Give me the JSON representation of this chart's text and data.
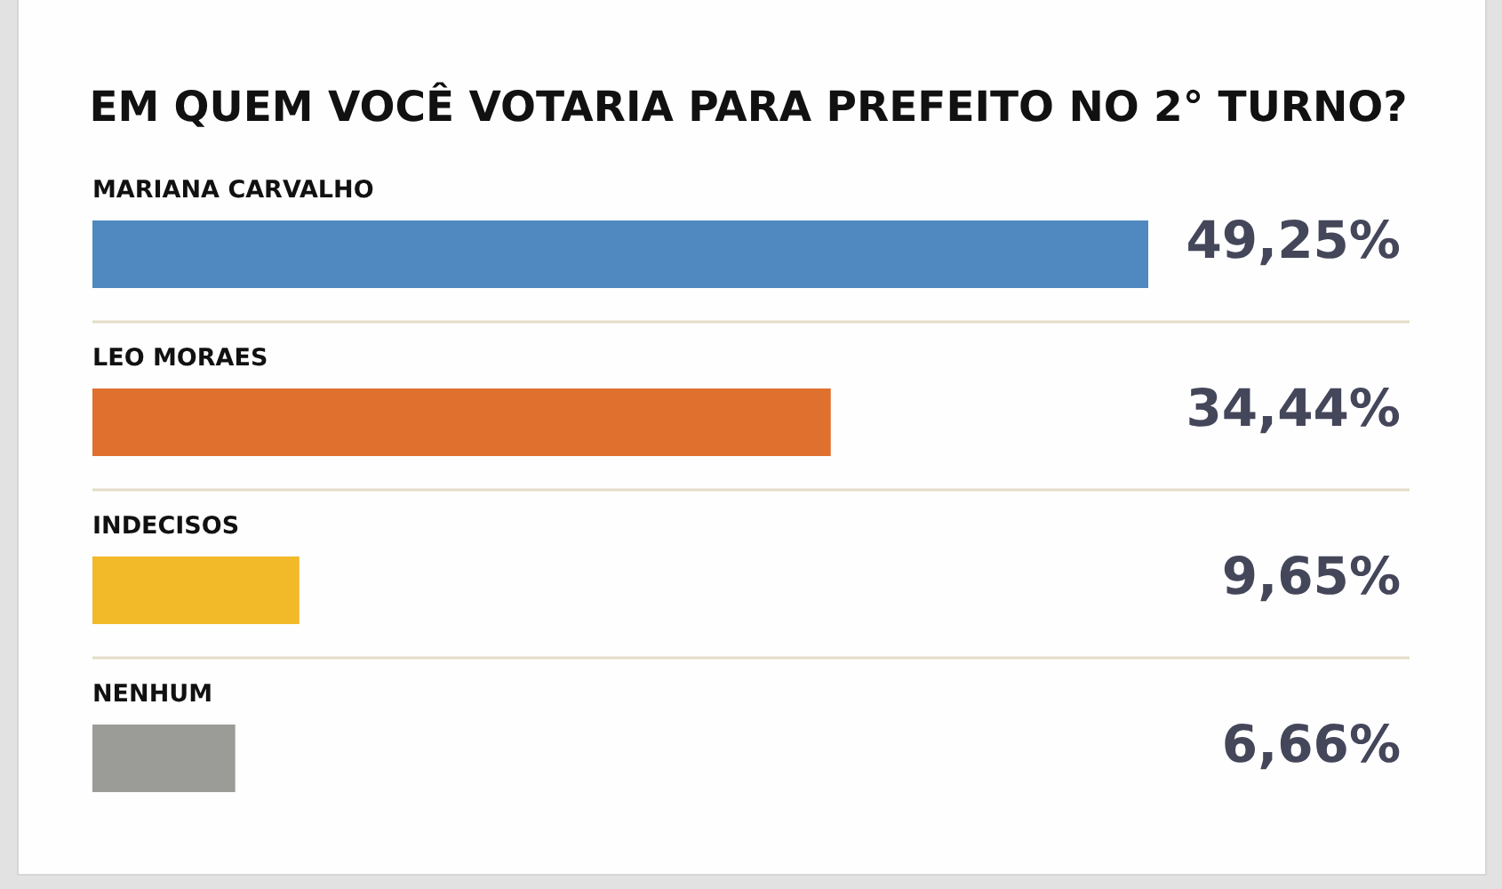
{
  "chart_data": {
    "type": "bar",
    "orientation": "horizontal",
    "title": "EM QUEM VOCÊ VOTARIA PARA PREFEITO NO 2° TURNO?",
    "categories": [
      "MARIANA CARVALHO",
      "LEO MORAES",
      "INDECISOS",
      "NENHUM"
    ],
    "values": [
      49.25,
      34.44,
      9.65,
      6.66
    ],
    "colors": [
      "#5089c0",
      "#e0702e",
      "#f2b928",
      "#9b9b98"
    ],
    "value_labels": [
      "49,25%",
      "34,44%",
      "9,65%",
      "6,66%"
    ],
    "grid": "y"
  }
}
